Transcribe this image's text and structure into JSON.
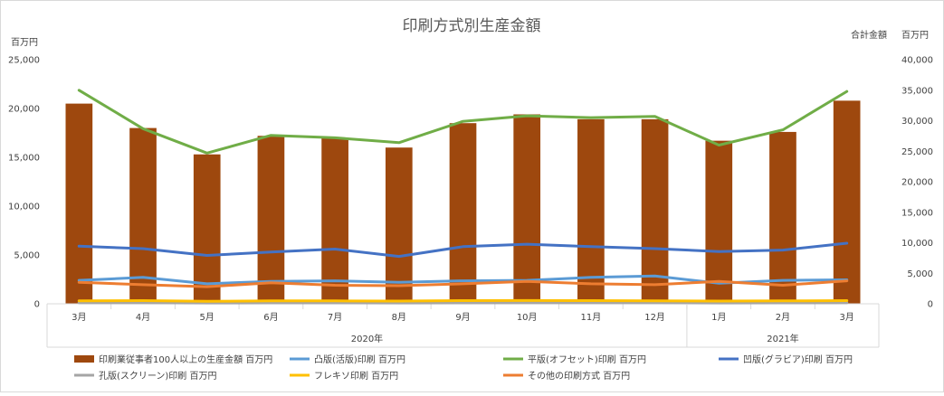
{
  "chart_data": {
    "type": "bar",
    "title": "印刷方式別生産金額",
    "left_axis_unit": "百万円",
    "right_axis_unit": "百万円",
    "right_axis_title": "合計金額",
    "categories": [
      "3月",
      "4月",
      "5月",
      "6月",
      "7月",
      "8月",
      "9月",
      "10月",
      "11月",
      "12月",
      "1月",
      "2月",
      "3月"
    ],
    "groups": [
      {
        "label": "2020年",
        "start": 0,
        "end": 9
      },
      {
        "label": "2021年",
        "start": 10,
        "end": 12
      }
    ],
    "ylim_left": [
      0,
      25000
    ],
    "yticks_left": [
      "0",
      "5,000",
      "10,000",
      "15,000",
      "20,000",
      "25,000"
    ],
    "ylim_right": [
      0,
      40000
    ],
    "yticks_right": [
      "0",
      "5,000",
      "10,000",
      "15,000",
      "20,000",
      "25,000",
      "30,000",
      "35,000",
      "40,000"
    ],
    "series": [
      {
        "name": "印刷業従事者100人以上の生産金額 百万円",
        "kind": "bar",
        "axis": "left",
        "color": "#9E480E",
        "values": [
          20500,
          18000,
          15300,
          17200,
          17000,
          16000,
          18500,
          19400,
          18900,
          18900,
          16700,
          17600,
          20800
        ]
      },
      {
        "name": "凸版(活版)印刷 百万円",
        "kind": "line",
        "axis": "left",
        "color": "#5B9BD5",
        "values": [
          2400,
          2700,
          2050,
          2300,
          2350,
          2200,
          2350,
          2400,
          2700,
          2850,
          2100,
          2400,
          2450
        ]
      },
      {
        "name": "平版(オフセット)印刷 百万円",
        "kind": "line",
        "axis": "right",
        "color": "#70AD47",
        "values": [
          35000,
          28700,
          24700,
          27600,
          27200,
          26400,
          29900,
          30800,
          30500,
          30700,
          26000,
          28500,
          34800
        ]
      },
      {
        "name": "凹版(グラビア)印刷 百万円",
        "kind": "line",
        "axis": "left",
        "color": "#4472C4",
        "values": [
          5900,
          5650,
          4950,
          5300,
          5600,
          4850,
          5850,
          6100,
          5850,
          5650,
          5350,
          5500,
          6200
        ]
      },
      {
        "name": "孔版(スクリーン)印刷 百万円",
        "kind": "line",
        "axis": "left",
        "color": "#A5A5A5",
        "values": [
          100,
          100,
          80,
          90,
          90,
          85,
          95,
          100,
          100,
          100,
          85,
          90,
          100
        ]
      },
      {
        "name": "フレキソ印刷 百万円",
        "kind": "line",
        "axis": "left",
        "color": "#FFC000",
        "values": [
          300,
          320,
          250,
          300,
          300,
          280,
          320,
          330,
          320,
          310,
          280,
          300,
          320
        ]
      },
      {
        "name": "その他の印刷方式 百万円",
        "kind": "line",
        "axis": "left",
        "color": "#ED7D31",
        "values": [
          2200,
          1950,
          1750,
          2150,
          1900,
          1850,
          2050,
          2300,
          2050,
          1950,
          2300,
          1900,
          2350
        ]
      }
    ],
    "legend_position": "bottom",
    "grid": false
  }
}
